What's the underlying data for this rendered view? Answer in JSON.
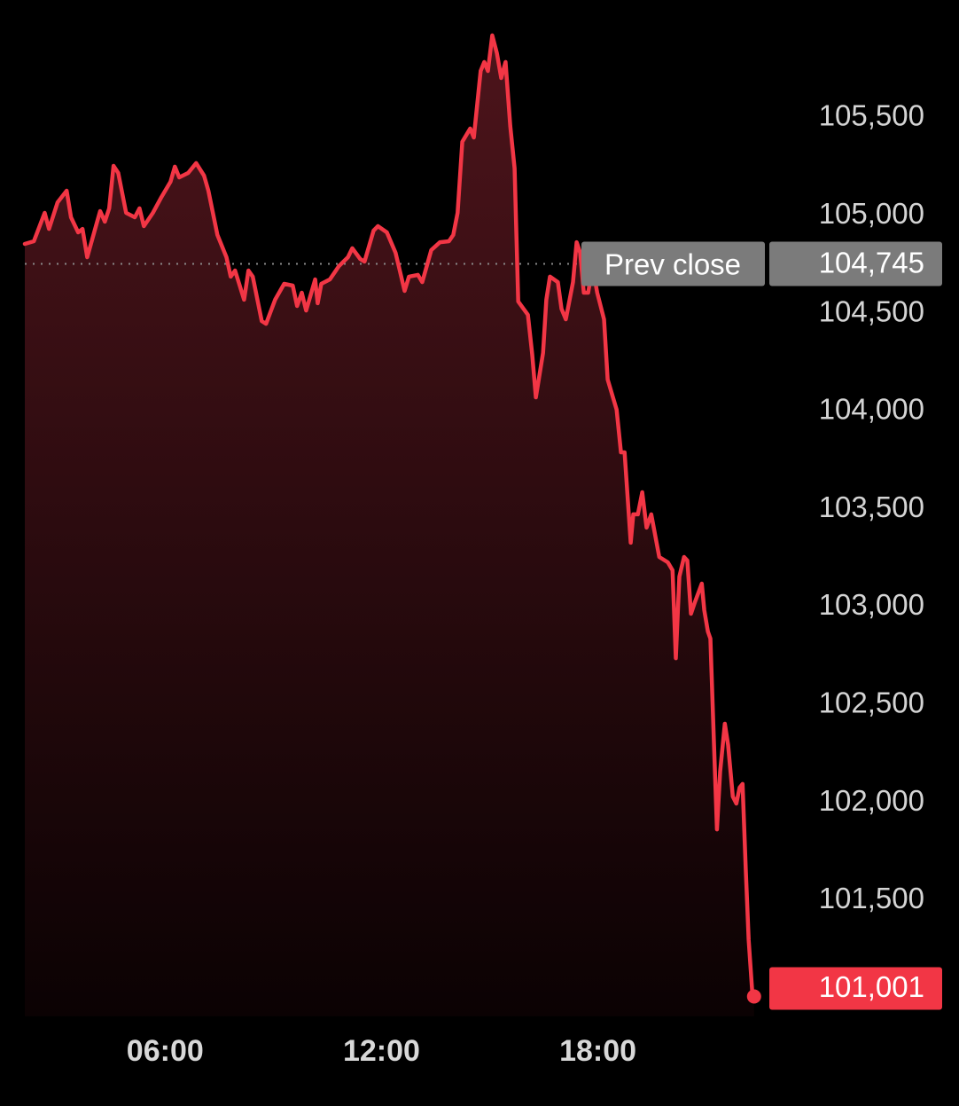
{
  "chart_data": {
    "type": "area",
    "color": "#f23645",
    "x": [
      2.11,
      2.36,
      2.66,
      2.78,
      3.02,
      3.27,
      3.39,
      3.59,
      3.71,
      3.84,
      4.08,
      4.2,
      4.33,
      4.45,
      4.57,
      4.7,
      4.92,
      5.16,
      5.29,
      5.41,
      5.66,
      5.9,
      6.15,
      6.27,
      6.39,
      6.64,
      6.86,
      7.08,
      7.2,
      7.45,
      7.7,
      7.82,
      7.94,
      8.19,
      8.31,
      8.43,
      8.68,
      8.8,
      9.05,
      9.3,
      9.54,
      9.66,
      9.79,
      9.91,
      10.16,
      10.23,
      10.33,
      10.57,
      10.82,
      11.07,
      11.19,
      11.41,
      11.53,
      11.78,
      11.9,
      12.15,
      12.39,
      12.64,
      12.76,
      13.01,
      13.13,
      13.38,
      13.62,
      13.87,
      13.99,
      14.11,
      14.24,
      14.46,
      14.56,
      14.75,
      14.85,
      14.95,
      15.07,
      15.2,
      15.32,
      15.44,
      15.57,
      15.69,
      15.79,
      16.06,
      16.18,
      16.28,
      16.48,
      16.57,
      16.67,
      16.89,
      16.99,
      17.11,
      17.31,
      17.41,
      17.51,
      17.61,
      17.73,
      17.85,
      17.98,
      18.17,
      18.27,
      18.52,
      18.64,
      18.74,
      18.91,
      18.98,
      19.11,
      19.23,
      19.35,
      19.48,
      19.7,
      19.94,
      20.07,
      20.16,
      20.26,
      20.39,
      20.48,
      20.58,
      20.68,
      20.88,
      20.95,
      21.05,
      21.12,
      21.22,
      21.3,
      21.39,
      21.52,
      21.61,
      21.74,
      21.84,
      21.93,
      22.01,
      22.1,
      22.18,
      22.28,
      22.33
    ],
    "values": [
      104847,
      104861,
      105006,
      104924,
      105060,
      105119,
      104983,
      104906,
      104924,
      104779,
      104938,
      105015,
      104961,
      105029,
      105246,
      105210,
      105006,
      104983,
      105029,
      104938,
      105006,
      105087,
      105165,
      105242,
      105187,
      105210,
      105260,
      105196,
      105119,
      104893,
      104779,
      104680,
      104711,
      104562,
      104711,
      104680,
      104453,
      104439,
      104562,
      104643,
      104634,
      104530,
      104598,
      104507,
      104666,
      104544,
      104643,
      104666,
      104734,
      104779,
      104825,
      104770,
      104757,
      104915,
      104938,
      104906,
      104802,
      104607,
      104680,
      104689,
      104652,
      104816,
      104856,
      104861,
      104893,
      105006,
      105369,
      105437,
      105391,
      105731,
      105777,
      105731,
      105913,
      105822,
      105695,
      105777,
      105450,
      105233,
      104553,
      104485,
      104281,
      104063,
      104290,
      104562,
      104680,
      104652,
      104516,
      104462,
      104652,
      104856,
      104802,
      104598,
      104598,
      104734,
      104598,
      104462,
      104154,
      104000,
      103782,
      103782,
      103320,
      103465,
      103465,
      103578,
      103397,
      103465,
      103247,
      103220,
      103179,
      102730,
      103147,
      103247,
      103229,
      102957,
      103011,
      103111,
      102975,
      102866,
      102830,
      102286,
      101855,
      102150,
      102395,
      102286,
      102023,
      101987,
      102069,
      102087,
      101651,
      101289,
      101026,
      101001
    ],
    "xlim": [
      2.11,
      22.95
    ],
    "xticks": [
      {
        "value": 6,
        "label": "06:00"
      },
      {
        "value": 12,
        "label": "12:00"
      },
      {
        "value": 18,
        "label": "18:00"
      }
    ],
    "ylim": [
      100900,
      105960
    ],
    "yticks": [
      {
        "value": 101500,
        "label": "101,500"
      },
      {
        "value": 102000,
        "label": "102,000"
      },
      {
        "value": 102500,
        "label": "102,500"
      },
      {
        "value": 103000,
        "label": "103,000"
      },
      {
        "value": 103500,
        "label": "103,500"
      },
      {
        "value": 104000,
        "label": "104,000"
      },
      {
        "value": 104500,
        "label": "104,500"
      },
      {
        "value": 105000,
        "label": "105,000"
      },
      {
        "value": 105500,
        "label": "105,500"
      }
    ],
    "prev_close_label": "Prev close",
    "prev_close": {
      "value": 104745,
      "label": "104,745"
    },
    "last_price": {
      "value": 101001,
      "label": "101,001"
    }
  }
}
